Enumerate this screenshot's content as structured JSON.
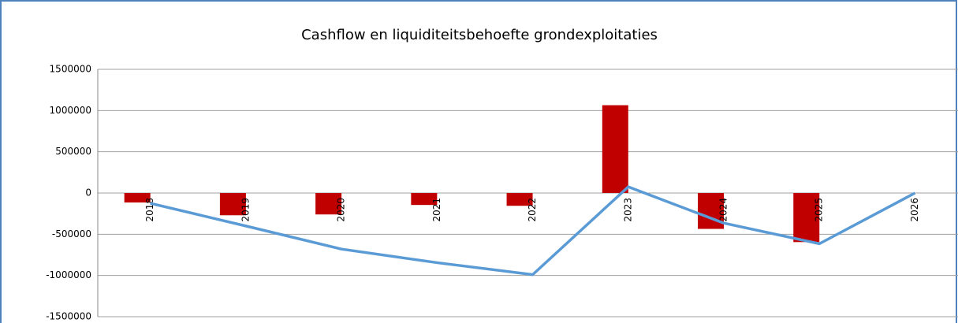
{
  "chart_data": {
    "type": "bar-line",
    "title": "Cashflow en liquiditeitsbehoefte grondexploitaties",
    "categories": [
      "2018",
      "2019",
      "2020",
      "2021",
      "2022",
      "2023",
      "2024",
      "2025",
      "2026"
    ],
    "series": [
      {
        "type": "bar",
        "color": "#c00000",
        "values": [
          -115000,
          -270000,
          -260000,
          -145000,
          -155000,
          1065000,
          -435000,
          -595000,
          0
        ]
      },
      {
        "type": "line",
        "color": "#5b9bd5",
        "values": [
          -125000,
          -400000,
          -680000,
          -845000,
          -990000,
          75000,
          -365000,
          -615000,
          0
        ]
      }
    ],
    "ylim": [
      -1500000,
      1500000
    ],
    "yticks": [
      -1500000,
      -1000000,
      -500000,
      0,
      500000,
      1000000,
      1500000
    ],
    "grid": true
  }
}
